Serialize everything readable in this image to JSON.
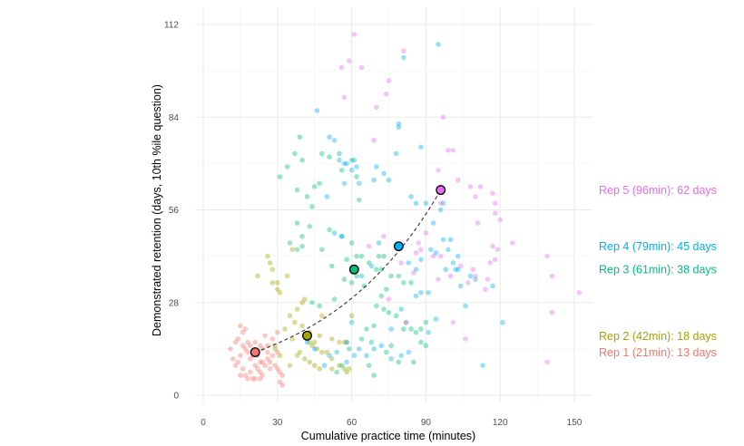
{
  "chart_data": {
    "type": "scatter",
    "title": "",
    "xlabel": "Cumulative practice time (minutes)",
    "ylabel": "Demonstrated retention (days, 10th %ile question)",
    "xlim": [
      -3,
      158
    ],
    "ylim": [
      -2,
      117
    ],
    "x_ticks": [
      0,
      30,
      60,
      90,
      120,
      150
    ],
    "y_ticks": [
      0,
      28,
      56,
      84,
      112
    ],
    "x_tick_labels": [
      "0",
      "30",
      "60",
      "90",
      "120",
      "150"
    ],
    "y_tick_labels": [
      "0",
      "28",
      "56",
      "84",
      "112"
    ],
    "grid": true,
    "legend": "none",
    "series": [
      {
        "name": "Rep 1",
        "color": "#F8766D",
        "points": [
          [
            13,
            16
          ],
          [
            16,
            15
          ],
          [
            17,
            14
          ],
          [
            15,
            12
          ],
          [
            12,
            11
          ],
          [
            14,
            10
          ],
          [
            18,
            13
          ],
          [
            20,
            12
          ],
          [
            19,
            11
          ],
          [
            22,
            12
          ],
          [
            23,
            10
          ],
          [
            24,
            10
          ],
          [
            25,
            9
          ],
          [
            26,
            11
          ],
          [
            27,
            10
          ],
          [
            28,
            12
          ],
          [
            29,
            9
          ],
          [
            30,
            8
          ],
          [
            31,
            7
          ],
          [
            32,
            6
          ],
          [
            21,
            9
          ],
          [
            22,
            8
          ],
          [
            23,
            7
          ],
          [
            24,
            6
          ],
          [
            19,
            7
          ],
          [
            17,
            6
          ],
          [
            15,
            6
          ],
          [
            16,
            8
          ],
          [
            13,
            9
          ],
          [
            11,
            14
          ],
          [
            14,
            17
          ],
          [
            16,
            19
          ],
          [
            17,
            20
          ],
          [
            15,
            21
          ],
          [
            21,
            16
          ],
          [
            23,
            15
          ],
          [
            26,
            15
          ],
          [
            28,
            17
          ],
          [
            30,
            19
          ],
          [
            25,
            18
          ],
          [
            19,
            15
          ],
          [
            18,
            16
          ],
          [
            30,
            13
          ],
          [
            29,
            15
          ],
          [
            27,
            8
          ],
          [
            20,
            5
          ],
          [
            18,
            5
          ],
          [
            21,
            5
          ],
          [
            23,
            5
          ],
          [
            31,
            4
          ],
          [
            32,
            3
          ],
          [
            26,
            13
          ],
          [
            24,
            14
          ]
        ],
        "mean": [
          21,
          13
        ]
      },
      {
        "name": "Rep 2",
        "color": "#A3A500",
        "points": [
          [
            27,
            40
          ],
          [
            31,
            31
          ],
          [
            30,
            32
          ],
          [
            28,
            34
          ],
          [
            35,
            24
          ],
          [
            42,
            17
          ],
          [
            43,
            16
          ],
          [
            44,
            15
          ],
          [
            45,
            16
          ],
          [
            39,
            13
          ],
          [
            33,
            20
          ],
          [
            37,
            22
          ],
          [
            40,
            21
          ],
          [
            46,
            14
          ],
          [
            48,
            13
          ],
          [
            50,
            13
          ],
          [
            52,
            11
          ],
          [
            55,
            16
          ],
          [
            57,
            16
          ],
          [
            58,
            16
          ],
          [
            41,
            11
          ],
          [
            43,
            10
          ],
          [
            45,
            9
          ],
          [
            47,
            8
          ],
          [
            52,
            8
          ],
          [
            55,
            9
          ],
          [
            57,
            8
          ],
          [
            58,
            7
          ],
          [
            59,
            8
          ],
          [
            43,
            19
          ],
          [
            47,
            18
          ],
          [
            52,
            17
          ],
          [
            36,
            17
          ],
          [
            38,
            12
          ],
          [
            35,
            9
          ],
          [
            29,
            14
          ],
          [
            31,
            12
          ],
          [
            30,
            34
          ],
          [
            28,
            38
          ],
          [
            34,
            36
          ],
          [
            40,
            28
          ],
          [
            41,
            29
          ],
          [
            38,
            26
          ],
          [
            22,
            36
          ],
          [
            26,
            42
          ],
          [
            36,
            44
          ],
          [
            48,
            24
          ],
          [
            60,
            24
          ]
        ],
        "mean": [
          42,
          18
        ]
      },
      {
        "name": "Rep 3",
        "color": "#00BF7D",
        "points": [
          [
            31,
            66
          ],
          [
            37,
            73
          ],
          [
            39,
            78
          ],
          [
            40,
            71
          ],
          [
            38,
            62
          ],
          [
            34,
            69
          ],
          [
            47,
            64
          ],
          [
            48,
            73
          ],
          [
            55,
            73
          ],
          [
            51,
            72
          ],
          [
            61,
            71
          ],
          [
            62,
            66
          ],
          [
            63,
            59
          ],
          [
            56,
            68
          ],
          [
            45,
            63
          ],
          [
            42,
            60
          ],
          [
            44,
            57
          ],
          [
            43,
            51
          ],
          [
            38,
            52
          ],
          [
            40,
            48
          ],
          [
            35,
            46
          ],
          [
            38,
            44
          ],
          [
            40,
            45
          ],
          [
            48,
            44
          ],
          [
            51,
            50
          ],
          [
            56,
            48
          ],
          [
            60,
            46
          ],
          [
            62,
            42
          ],
          [
            64,
            42
          ],
          [
            67,
            40
          ],
          [
            70,
            38
          ],
          [
            72,
            38
          ],
          [
            76,
            36
          ],
          [
            79,
            36
          ],
          [
            81,
            34
          ],
          [
            84,
            34
          ],
          [
            62,
            36
          ],
          [
            65,
            33
          ],
          [
            70,
            27
          ],
          [
            73,
            26
          ],
          [
            75,
            25
          ],
          [
            82,
            22
          ],
          [
            84,
            20
          ],
          [
            86,
            19
          ],
          [
            88,
            16
          ],
          [
            90,
            15
          ],
          [
            72,
            30
          ],
          [
            69,
            21
          ],
          [
            66,
            20
          ],
          [
            68,
            16
          ],
          [
            74,
            13
          ],
          [
            76,
            15
          ],
          [
            79,
            10
          ],
          [
            85,
            10
          ],
          [
            59,
            14
          ],
          [
            56,
            9
          ],
          [
            54,
            7
          ],
          [
            64,
            17
          ],
          [
            67,
            9
          ],
          [
            69,
            6
          ],
          [
            44,
            28
          ],
          [
            47,
            27
          ],
          [
            53,
            29
          ],
          [
            57,
            35
          ],
          [
            60,
            34
          ],
          [
            71,
            42
          ],
          [
            73,
            42
          ],
          [
            74,
            32
          ],
          [
            78,
            24
          ],
          [
            81,
            20
          ],
          [
            88,
            20
          ],
          [
            90,
            22
          ],
          [
            58,
            41
          ],
          [
            52,
            39
          ]
        ],
        "mean": [
          61,
          38
        ]
      },
      {
        "name": "Rep 4",
        "color": "#00B0F6",
        "points": [
          [
            46,
            86
          ],
          [
            51,
            78
          ],
          [
            53,
            77
          ],
          [
            55,
            71
          ],
          [
            57,
            70
          ],
          [
            58,
            70
          ],
          [
            60,
            68
          ],
          [
            62,
            69
          ],
          [
            63,
            64
          ],
          [
            69,
            65
          ],
          [
            73,
            67
          ],
          [
            75,
            65
          ],
          [
            78,
            73
          ],
          [
            79,
            82
          ],
          [
            79,
            81
          ],
          [
            81,
            102
          ],
          [
            95,
            106
          ],
          [
            88,
            75
          ],
          [
            84,
            60
          ],
          [
            86,
            58
          ],
          [
            90,
            58
          ],
          [
            93,
            52
          ],
          [
            97,
            58
          ],
          [
            100,
            47
          ],
          [
            94,
            43
          ],
          [
            92,
            44
          ],
          [
            88,
            41
          ],
          [
            86,
            38
          ],
          [
            83,
            40
          ],
          [
            98,
            38
          ],
          [
            102,
            38
          ],
          [
            108,
            36
          ],
          [
            110,
            35
          ],
          [
            117,
            33
          ],
          [
            121,
            22
          ],
          [
            113,
            9
          ],
          [
            76,
            20
          ],
          [
            80,
            26
          ],
          [
            86,
            30
          ],
          [
            88,
            31
          ],
          [
            91,
            31
          ],
          [
            101,
            40
          ],
          [
            103,
            38
          ],
          [
            71,
            46
          ],
          [
            68,
            39
          ],
          [
            64,
            36
          ],
          [
            56,
            48
          ],
          [
            53,
            49
          ],
          [
            60,
            22
          ],
          [
            58,
            16
          ],
          [
            54,
            13
          ],
          [
            51,
            12
          ],
          [
            49,
            9
          ],
          [
            45,
            14
          ],
          [
            42,
            16
          ],
          [
            58,
            10
          ],
          [
            61,
            12
          ],
          [
            63,
            14
          ],
          [
            66,
            12
          ],
          [
            69,
            14
          ],
          [
            72,
            15
          ],
          [
            76,
            11
          ],
          [
            80,
            12
          ],
          [
            83,
            13
          ],
          [
            104,
            33
          ],
          [
            106,
            27
          ],
          [
            94,
            23
          ],
          [
            91,
            19
          ],
          [
            97,
            47
          ],
          [
            99,
            44
          ],
          [
            103,
            42
          ],
          [
            96,
            56
          ],
          [
            60,
            71
          ],
          [
            57,
            64
          ],
          [
            50,
            60
          ],
          [
            70,
            69
          ]
        ],
        "mean": [
          79,
          45
        ]
      },
      {
        "name": "Rep 5",
        "color": "#E76BF3",
        "points": [
          [
            61,
            109
          ],
          [
            56,
            99
          ],
          [
            59,
            101
          ],
          [
            57,
            90
          ],
          [
            70,
            87
          ],
          [
            64,
            99
          ],
          [
            69,
            77
          ],
          [
            74,
            91
          ],
          [
            75,
            95
          ],
          [
            81,
            104
          ],
          [
            97,
            84
          ],
          [
            99,
            74
          ],
          [
            101,
            74
          ],
          [
            95,
            68
          ],
          [
            103,
            65
          ],
          [
            110,
            60
          ],
          [
            118,
            58
          ],
          [
            108,
            63
          ],
          [
            112,
            63
          ],
          [
            117,
            61
          ],
          [
            118,
            55
          ],
          [
            120,
            53
          ],
          [
            111,
            52
          ],
          [
            117,
            45
          ],
          [
            119,
            44
          ],
          [
            118,
            41
          ],
          [
            116,
            40
          ],
          [
            109,
            38
          ],
          [
            100,
            36
          ],
          [
            95,
            35
          ],
          [
            86,
            43
          ],
          [
            88,
            44
          ],
          [
            80,
            40
          ],
          [
            87,
            46
          ],
          [
            104,
            39
          ],
          [
            107,
            34
          ],
          [
            115,
            35
          ],
          [
            114,
            32
          ],
          [
            110,
            36
          ],
          [
            125,
            46
          ],
          [
            139,
            42
          ],
          [
            141,
            36
          ],
          [
            141,
            25
          ],
          [
            139,
            10
          ],
          [
            152,
            31
          ],
          [
            106,
            17
          ],
          [
            101,
            22
          ],
          [
            90,
            49
          ],
          [
            85,
            37
          ],
          [
            93,
            42
          ],
          [
            73,
            48
          ],
          [
            67,
            45
          ],
          [
            75,
            29
          ],
          [
            82,
            22
          ],
          [
            96,
            58
          ],
          [
            96,
            42
          ]
        ],
        "mean": [
          96,
          62
        ]
      }
    ],
    "means_line": {
      "style": "dashed",
      "color": "#333333",
      "points": [
        [
          21,
          13
        ],
        [
          42,
          18
        ],
        [
          61,
          38
        ],
        [
          79,
          45
        ],
        [
          96,
          62
        ]
      ]
    },
    "annotations": [
      {
        "text": "Rep 5 (96min): 62 days",
        "color": "#E76BF3",
        "y": 62
      },
      {
        "text": "Rep 4 (79min): 45 days",
        "color": "#00B0F6",
        "y": 45
      },
      {
        "text": "Rep 3 (61min): 38 days",
        "color": "#00BF7D",
        "y": 38
      },
      {
        "text": "Rep 2 (42min): 18 days",
        "color": "#A3A500",
        "y": 18
      },
      {
        "text": "Rep 1 (21min): 13 days",
        "color": "#F8766D",
        "y": 13
      }
    ]
  }
}
